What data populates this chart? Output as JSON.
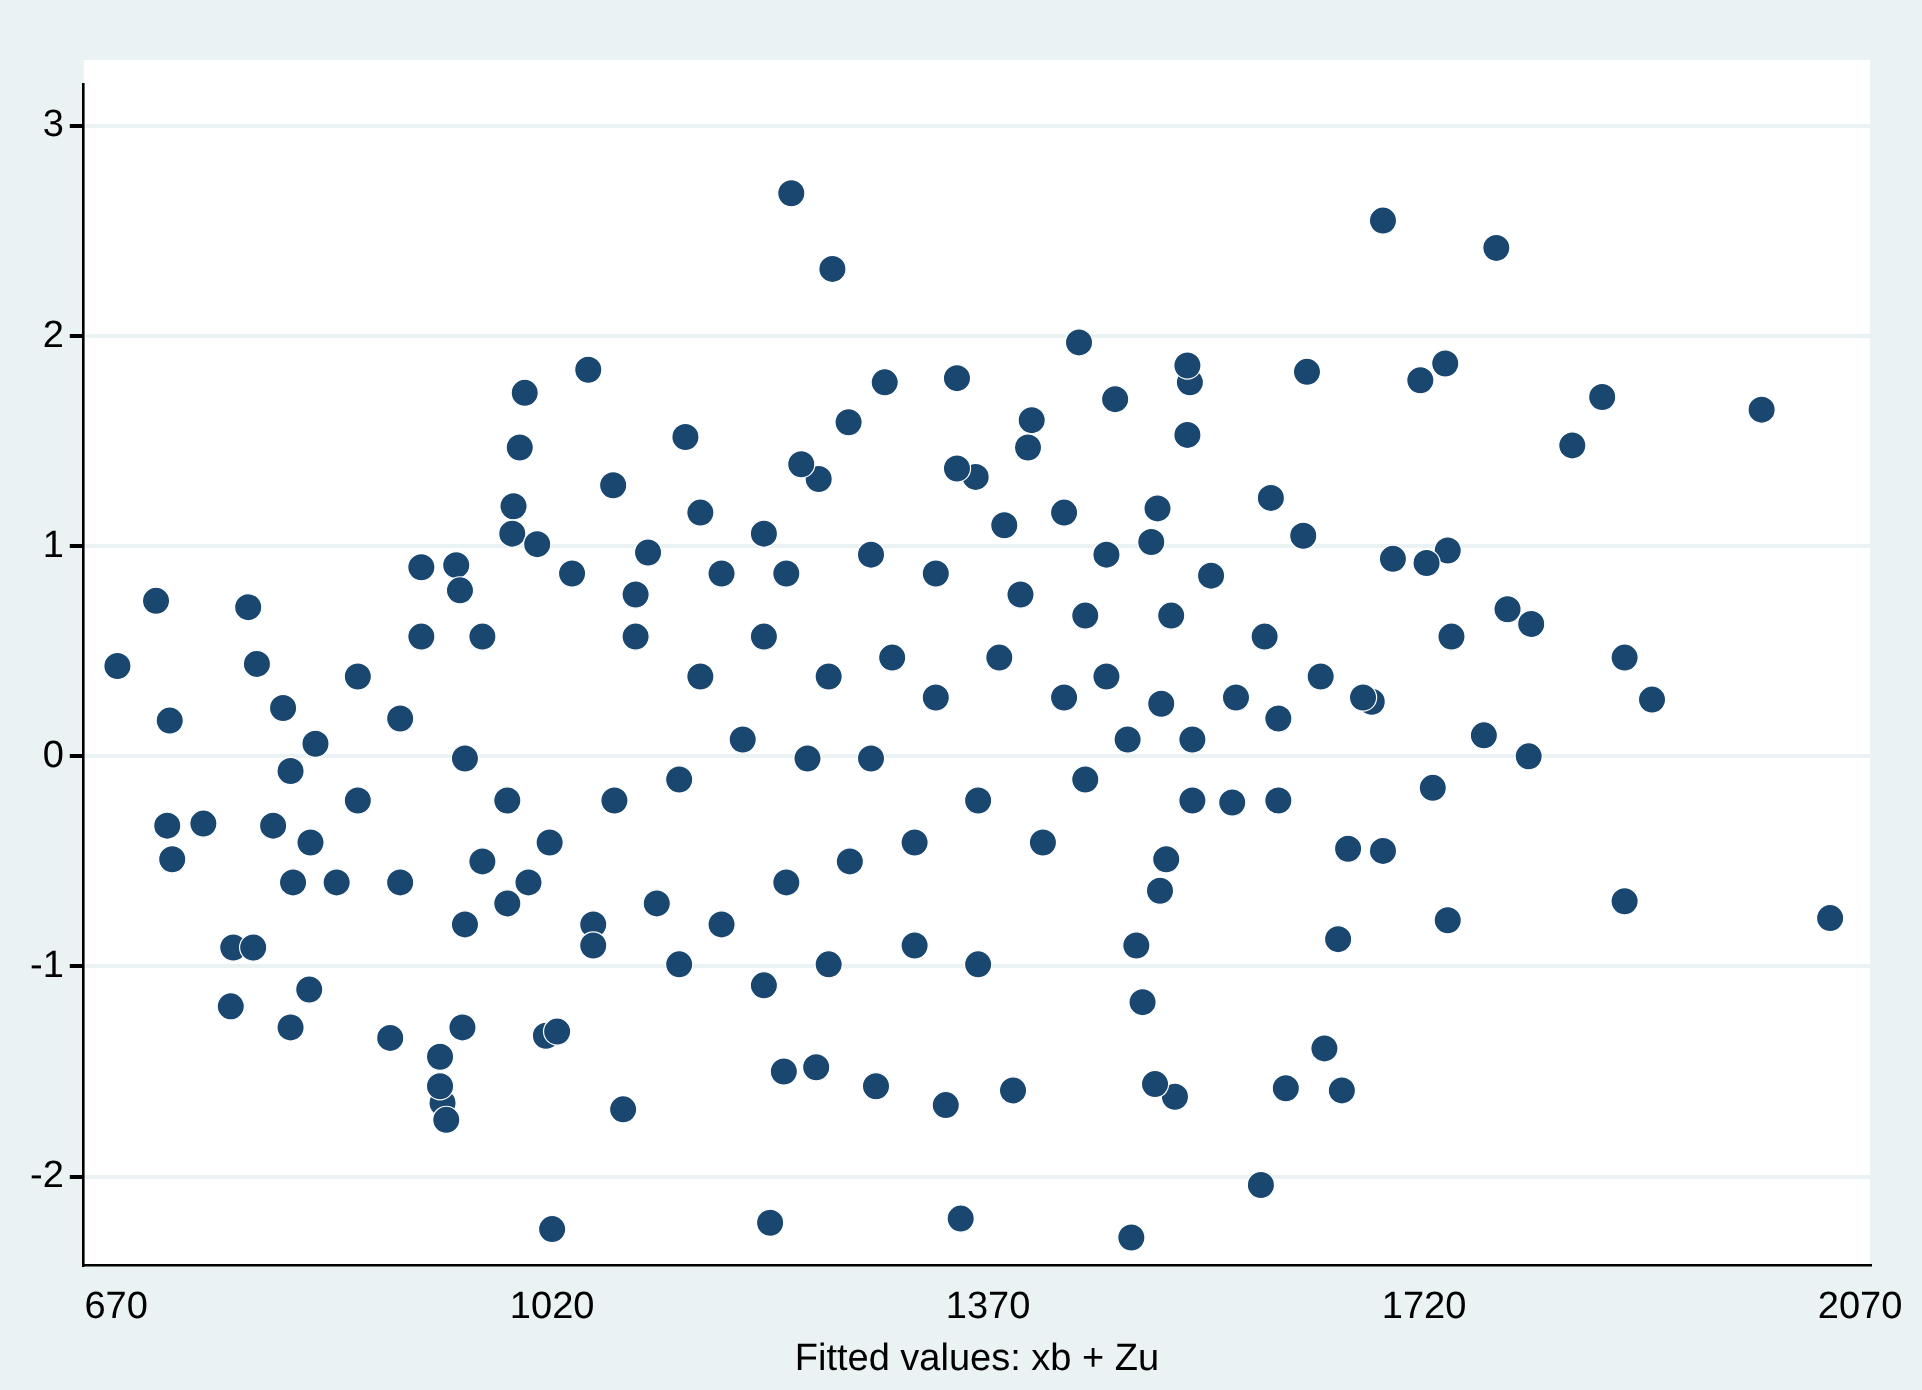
{
  "chart_data": {
    "type": "scatter",
    "xlabel": "Fitted values: xb + Zu",
    "xlim": [
      644,
      2078
    ],
    "ylim": [
      -2.42,
      3.2
    ],
    "xticks": [
      670,
      1020,
      1370,
      1720,
      2070
    ],
    "yticks": [
      -2,
      -1,
      0,
      1,
      2,
      3
    ],
    "grid": "y",
    "legend": false,
    "marker": "circle",
    "series": [
      {
        "color": "#1a476f",
        "x": [
          671,
          702,
          713,
          711,
          715,
          740,
          764,
          762,
          776,
          780,
          783,
          796,
          804,
          810,
          810,
          825,
          830,
          1020,
          1195,
          1348,
          1485,
          1589,
          1212,
          1245,
          1687,
          1778,
          1991,
          2046,
          1881,
          1903,
          1881,
          1863,
          1839,
          1806,
          1787,
          1804,
          1768,
          1742,
          1739,
          1737,
          1739,
          1722,
          1727,
          1717,
          1695,
          1687,
          1678,
          1659,
          1651,
          1640,
          1654,
          1609,
          1623,
          1597,
          1626,
          1566,
          1592,
          1549,
          1532,
          1530,
          1530,
          1506,
          1501,
          1509,
          1513,
          1508,
          1489,
          1520,
          1504,
          1494,
          1472,
          1443,
          1405,
          1402,
          1383,
          1360,
          1345,
          1345,
          1287,
          1258,
          1234,
          1220,
          1336,
          1390,
          1280,
          1206,
          1232,
          1077,
          1015,
          1024,
          948,
          890,
          932,
          930,
          935,
          930,
          1049,
          998,
          994,
          989,
          988,
          1008,
          1127,
          1069,
          1097,
          915,
          943,
          946,
          1087,
          1139,
          1190,
          1242,
          1293,
          1328,
          1379,
          1431,
          1465,
          1276,
          1225,
          1173,
          1122,
          1070,
          1018,
          984,
          950,
          898,
          864,
          847,
          898,
          950,
          1001,
          1053,
          1104,
          1156,
          1208,
          1259,
          1311,
          1362,
          1414,
          1448,
          1482,
          1534,
          1569,
          1603,
          1637,
          1671,
          1534,
          1603,
          1311,
          1362,
          1242,
          1190,
          1122,
          1053,
          984,
          915,
          864,
          1036,
          1156,
          1276,
          1328,
          1396,
          1448,
          1139,
          1190,
          1208,
          1087,
          964,
          964,
          826,
          812,
          1431,
          1465,
          1517
        ],
        "values": [
          0.43,
          0.74,
          0.17,
          -0.33,
          -0.49,
          -0.32,
          -0.91,
          -1.19,
          0.71,
          -0.91,
          0.44,
          -0.33,
          0.23,
          -1.29,
          -0.07,
          -1.11,
          0.06,
          -2.25,
          -2.22,
          -2.2,
          -2.29,
          -2.04,
          2.68,
          2.32,
          2.55,
          2.42,
          1.65,
          -0.77,
          -0.69,
          0.27,
          0.47,
          1.71,
          1.48,
          0.63,
          0.7,
          0,
          0.1,
          0.57,
          -0.78,
          1.87,
          0.98,
          0.92,
          -0.15,
          1.79,
          0.94,
          -0.45,
          0.26,
          -0.44,
          -0.87,
          -1.39,
          -1.59,
          -1.58,
          1.05,
          1.23,
          1.83,
          -0.22,
          0.57,
          0.86,
          1.78,
          1.86,
          1.53,
          1.18,
          1.02,
          0.25,
          -0.49,
          -0.64,
          -0.9,
          -1.62,
          -1.56,
          -1.17,
          1.7,
          1.97,
          1.6,
          1.47,
          1.1,
          1.33,
          1.37,
          1.8,
          1.78,
          1.59,
          1.32,
          1.39,
          -1.66,
          -1.59,
          -1.57,
          -1.5,
          -1.48,
          -1.68,
          -1.33,
          -1.31,
          -1.29,
          -1.34,
          -1.65,
          -1.57,
          -1.73,
          -1.43,
          1.84,
          1.73,
          1.47,
          1.19,
          1.06,
          1.01,
          1.52,
          1.29,
          0.97,
          0.9,
          0.91,
          0.79,
          0.57,
          0.38,
          0.57,
          0.38,
          0.47,
          0.28,
          0.47,
          0.28,
          0.38,
          -0.01,
          -0.01,
          0.08,
          -0.11,
          -0.21,
          -0.41,
          -0.21,
          -0.01,
          0.18,
          -0.21,
          -0.6,
          -0.6,
          -0.8,
          -0.6,
          -0.8,
          -0.7,
          -0.8,
          -0.6,
          -0.5,
          -0.41,
          -0.21,
          -0.41,
          -0.11,
          0.08,
          0.08,
          0.28,
          0.18,
          0.38,
          0.28,
          -0.21,
          -0.21,
          -0.9,
          -0.99,
          -0.99,
          -1.09,
          -0.99,
          -0.9,
          -0.7,
          0.57,
          0.38,
          0.87,
          0.87,
          0.96,
          0.87,
          0.77,
          0.67,
          1.16,
          1.06,
          0.87,
          0.77,
          0.57,
          -0.5,
          -0.41,
          -0.6,
          1.16,
          0.96,
          0.67
        ]
      }
    ]
  }
}
